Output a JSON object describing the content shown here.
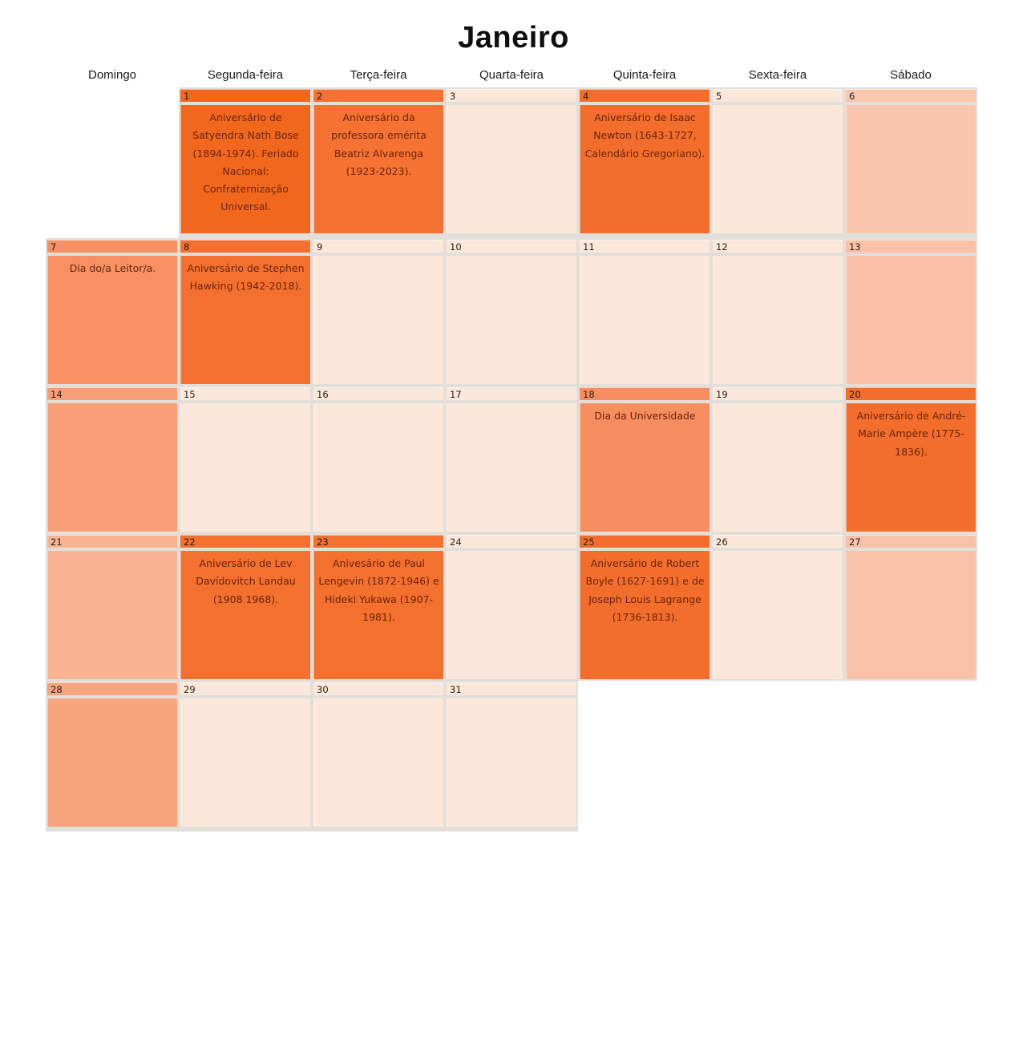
{
  "page": {
    "title": "Janeiro"
  },
  "weekdays": [
    "Domingo",
    "Segunda-feira",
    "Terça-feira",
    "Quarta-feira",
    "Quinta-feira",
    "Sexta-feira",
    "Sábado"
  ],
  "palette": {
    "holiday_orange": "#f2671e",
    "event_orange": "#f3702e",
    "sunday_event_salmon": "#f79063",
    "sunday_empty_salmon": "#f89e77",
    "saturday_empty_peach": "#fac3a9",
    "weekday_empty_cream": "#fbe8da",
    "grout_gray": "#e2dfdb",
    "event_text_brown": "#6a2408",
    "number_text_dark": "#26201a",
    "title_black": "#0f0f0f"
  },
  "cal": {
    "cells": [
      {
        "blank": true
      },
      {
        "num": "1",
        "bg": "#f2671e",
        "text": "Aniversário de Satyendra Nath Bose (1894-1974). Feriado Nacional: Confraternização Universal."
      },
      {
        "num": "2",
        "bg": "#f57233",
        "text": "Aniversário da professora emérita Beatriz Alvarenga (1923-2023)."
      },
      {
        "num": "3",
        "bg": "#fbe8da",
        "text": ""
      },
      {
        "num": "4",
        "bg": "#f36e2c",
        "text": "Aniversário de Isaac Newton (1643-1727, Calendário Gregoriano)."
      },
      {
        "num": "5",
        "bg": "#fbe8da",
        "text": ""
      },
      {
        "num": "6",
        "bg": "#fac7ae",
        "text": ""
      },
      {
        "num": "7",
        "bg": "#f79063",
        "text": "Dia do/a Leitor/a."
      },
      {
        "num": "8",
        "bg": "#f4702f",
        "text": "Aniversário de Stephen Hawking (1942-2018)."
      },
      {
        "num": "9",
        "bg": "#fbe8da",
        "text": ""
      },
      {
        "num": "10",
        "bg": "#fbe8da",
        "text": ""
      },
      {
        "num": "11",
        "bg": "#fbe8da",
        "text": ""
      },
      {
        "num": "12",
        "bg": "#fbe8da",
        "text": ""
      },
      {
        "num": "13",
        "bg": "#fac1a6",
        "text": ""
      },
      {
        "num": "14",
        "bg": "#f89e77",
        "text": ""
      },
      {
        "num": "15",
        "bg": "#fbe8da",
        "text": ""
      },
      {
        "num": "16",
        "bg": "#fbe8da",
        "text": ""
      },
      {
        "num": "17",
        "bg": "#fbe8da",
        "text": ""
      },
      {
        "num": "18",
        "bg": "#f78e60",
        "text": "Dia da Universidade"
      },
      {
        "num": "19",
        "bg": "#fbe8da",
        "text": ""
      },
      {
        "num": "20",
        "bg": "#f36e2c",
        "text": "Aniversário de André-Marie Ampère (1775-1836)."
      },
      {
        "num": "21",
        "bg": "#f9b493",
        "text": ""
      },
      {
        "num": "22",
        "bg": "#f3702e",
        "text": "Aniversário de Lev Davídovitch Landau (1908 1968)."
      },
      {
        "num": "23",
        "bg": "#f3702e",
        "text": "Anivesário de Paul Lengevin (1872-1946) e Hideki Yukawa (1907-1981)."
      },
      {
        "num": "24",
        "bg": "#fbe8da",
        "text": ""
      },
      {
        "num": "25",
        "bg": "#f36e2c",
        "text": "Aniversário de Robert Boyle (1627-1691) e de Joseph Louis Lagrange (1736-1813)."
      },
      {
        "num": "26",
        "bg": "#fbe8da",
        "text": ""
      },
      {
        "num": "27",
        "bg": "#fac3a9",
        "text": ""
      },
      {
        "num": "28",
        "bg": "#f8a47d",
        "text": ""
      },
      {
        "num": "29",
        "bg": "#fbe8da",
        "text": ""
      },
      {
        "num": "30",
        "bg": "#fbe8da",
        "text": ""
      },
      {
        "num": "31",
        "bg": "#fbe8da",
        "text": ""
      },
      {
        "blank": true
      },
      {
        "blank": true
      },
      {
        "blank": true
      }
    ]
  }
}
